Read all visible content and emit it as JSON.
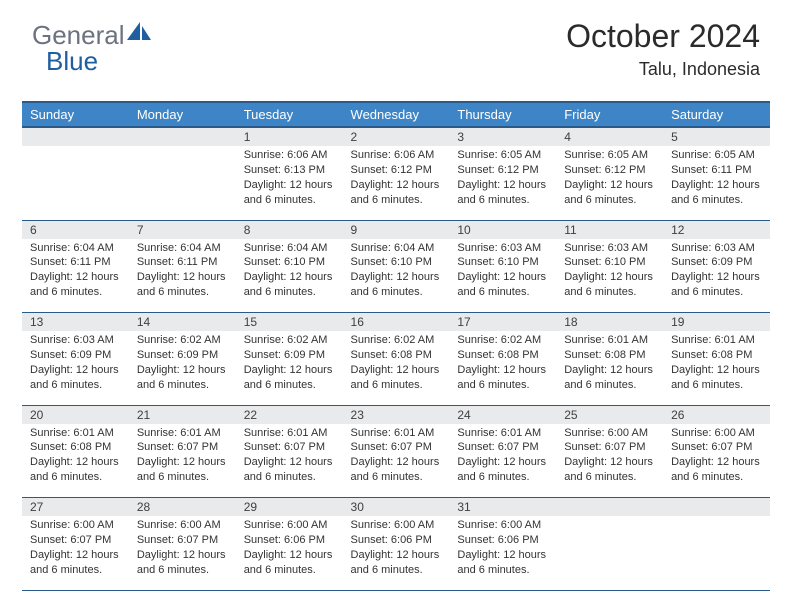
{
  "logo": {
    "general": "General",
    "blue": "Blue"
  },
  "header": {
    "title": "October 2024",
    "location": "Talu, Indonesia"
  },
  "colors": {
    "header_bg": "#3d85c6",
    "header_border": "#2a5a8a",
    "daynum_bg": "#e9eaec",
    "text": "#333333",
    "logo_gray": "#6b7280",
    "logo_blue": "#1f5fa0"
  },
  "week_headers": [
    "Sunday",
    "Monday",
    "Tuesday",
    "Wednesday",
    "Thursday",
    "Friday",
    "Saturday"
  ],
  "weeks": [
    [
      null,
      null,
      {
        "n": "1",
        "sr": "6:06 AM",
        "ss": "6:13 PM",
        "dl": "12 hours and 6 minutes."
      },
      {
        "n": "2",
        "sr": "6:06 AM",
        "ss": "6:12 PM",
        "dl": "12 hours and 6 minutes."
      },
      {
        "n": "3",
        "sr": "6:05 AM",
        "ss": "6:12 PM",
        "dl": "12 hours and 6 minutes."
      },
      {
        "n": "4",
        "sr": "6:05 AM",
        "ss": "6:12 PM",
        "dl": "12 hours and 6 minutes."
      },
      {
        "n": "5",
        "sr": "6:05 AM",
        "ss": "6:11 PM",
        "dl": "12 hours and 6 minutes."
      }
    ],
    [
      {
        "n": "6",
        "sr": "6:04 AM",
        "ss": "6:11 PM",
        "dl": "12 hours and 6 minutes."
      },
      {
        "n": "7",
        "sr": "6:04 AM",
        "ss": "6:11 PM",
        "dl": "12 hours and 6 minutes."
      },
      {
        "n": "8",
        "sr": "6:04 AM",
        "ss": "6:10 PM",
        "dl": "12 hours and 6 minutes."
      },
      {
        "n": "9",
        "sr": "6:04 AM",
        "ss": "6:10 PM",
        "dl": "12 hours and 6 minutes."
      },
      {
        "n": "10",
        "sr": "6:03 AM",
        "ss": "6:10 PM",
        "dl": "12 hours and 6 minutes."
      },
      {
        "n": "11",
        "sr": "6:03 AM",
        "ss": "6:10 PM",
        "dl": "12 hours and 6 minutes."
      },
      {
        "n": "12",
        "sr": "6:03 AM",
        "ss": "6:09 PM",
        "dl": "12 hours and 6 minutes."
      }
    ],
    [
      {
        "n": "13",
        "sr": "6:03 AM",
        "ss": "6:09 PM",
        "dl": "12 hours and 6 minutes."
      },
      {
        "n": "14",
        "sr": "6:02 AM",
        "ss": "6:09 PM",
        "dl": "12 hours and 6 minutes."
      },
      {
        "n": "15",
        "sr": "6:02 AM",
        "ss": "6:09 PM",
        "dl": "12 hours and 6 minutes."
      },
      {
        "n": "16",
        "sr": "6:02 AM",
        "ss": "6:08 PM",
        "dl": "12 hours and 6 minutes."
      },
      {
        "n": "17",
        "sr": "6:02 AM",
        "ss": "6:08 PM",
        "dl": "12 hours and 6 minutes."
      },
      {
        "n": "18",
        "sr": "6:01 AM",
        "ss": "6:08 PM",
        "dl": "12 hours and 6 minutes."
      },
      {
        "n": "19",
        "sr": "6:01 AM",
        "ss": "6:08 PM",
        "dl": "12 hours and 6 minutes."
      }
    ],
    [
      {
        "n": "20",
        "sr": "6:01 AM",
        "ss": "6:08 PM",
        "dl": "12 hours and 6 minutes."
      },
      {
        "n": "21",
        "sr": "6:01 AM",
        "ss": "6:07 PM",
        "dl": "12 hours and 6 minutes."
      },
      {
        "n": "22",
        "sr": "6:01 AM",
        "ss": "6:07 PM",
        "dl": "12 hours and 6 minutes."
      },
      {
        "n": "23",
        "sr": "6:01 AM",
        "ss": "6:07 PM",
        "dl": "12 hours and 6 minutes."
      },
      {
        "n": "24",
        "sr": "6:01 AM",
        "ss": "6:07 PM",
        "dl": "12 hours and 6 minutes."
      },
      {
        "n": "25",
        "sr": "6:00 AM",
        "ss": "6:07 PM",
        "dl": "12 hours and 6 minutes."
      },
      {
        "n": "26",
        "sr": "6:00 AM",
        "ss": "6:07 PM",
        "dl": "12 hours and 6 minutes."
      }
    ],
    [
      {
        "n": "27",
        "sr": "6:00 AM",
        "ss": "6:07 PM",
        "dl": "12 hours and 6 minutes."
      },
      {
        "n": "28",
        "sr": "6:00 AM",
        "ss": "6:07 PM",
        "dl": "12 hours and 6 minutes."
      },
      {
        "n": "29",
        "sr": "6:00 AM",
        "ss": "6:06 PM",
        "dl": "12 hours and 6 minutes."
      },
      {
        "n": "30",
        "sr": "6:00 AM",
        "ss": "6:06 PM",
        "dl": "12 hours and 6 minutes."
      },
      {
        "n": "31",
        "sr": "6:00 AM",
        "ss": "6:06 PM",
        "dl": "12 hours and 6 minutes."
      },
      null,
      null
    ]
  ],
  "labels": {
    "sunrise": "Sunrise:",
    "sunset": "Sunset:",
    "daylight": "Daylight:"
  }
}
